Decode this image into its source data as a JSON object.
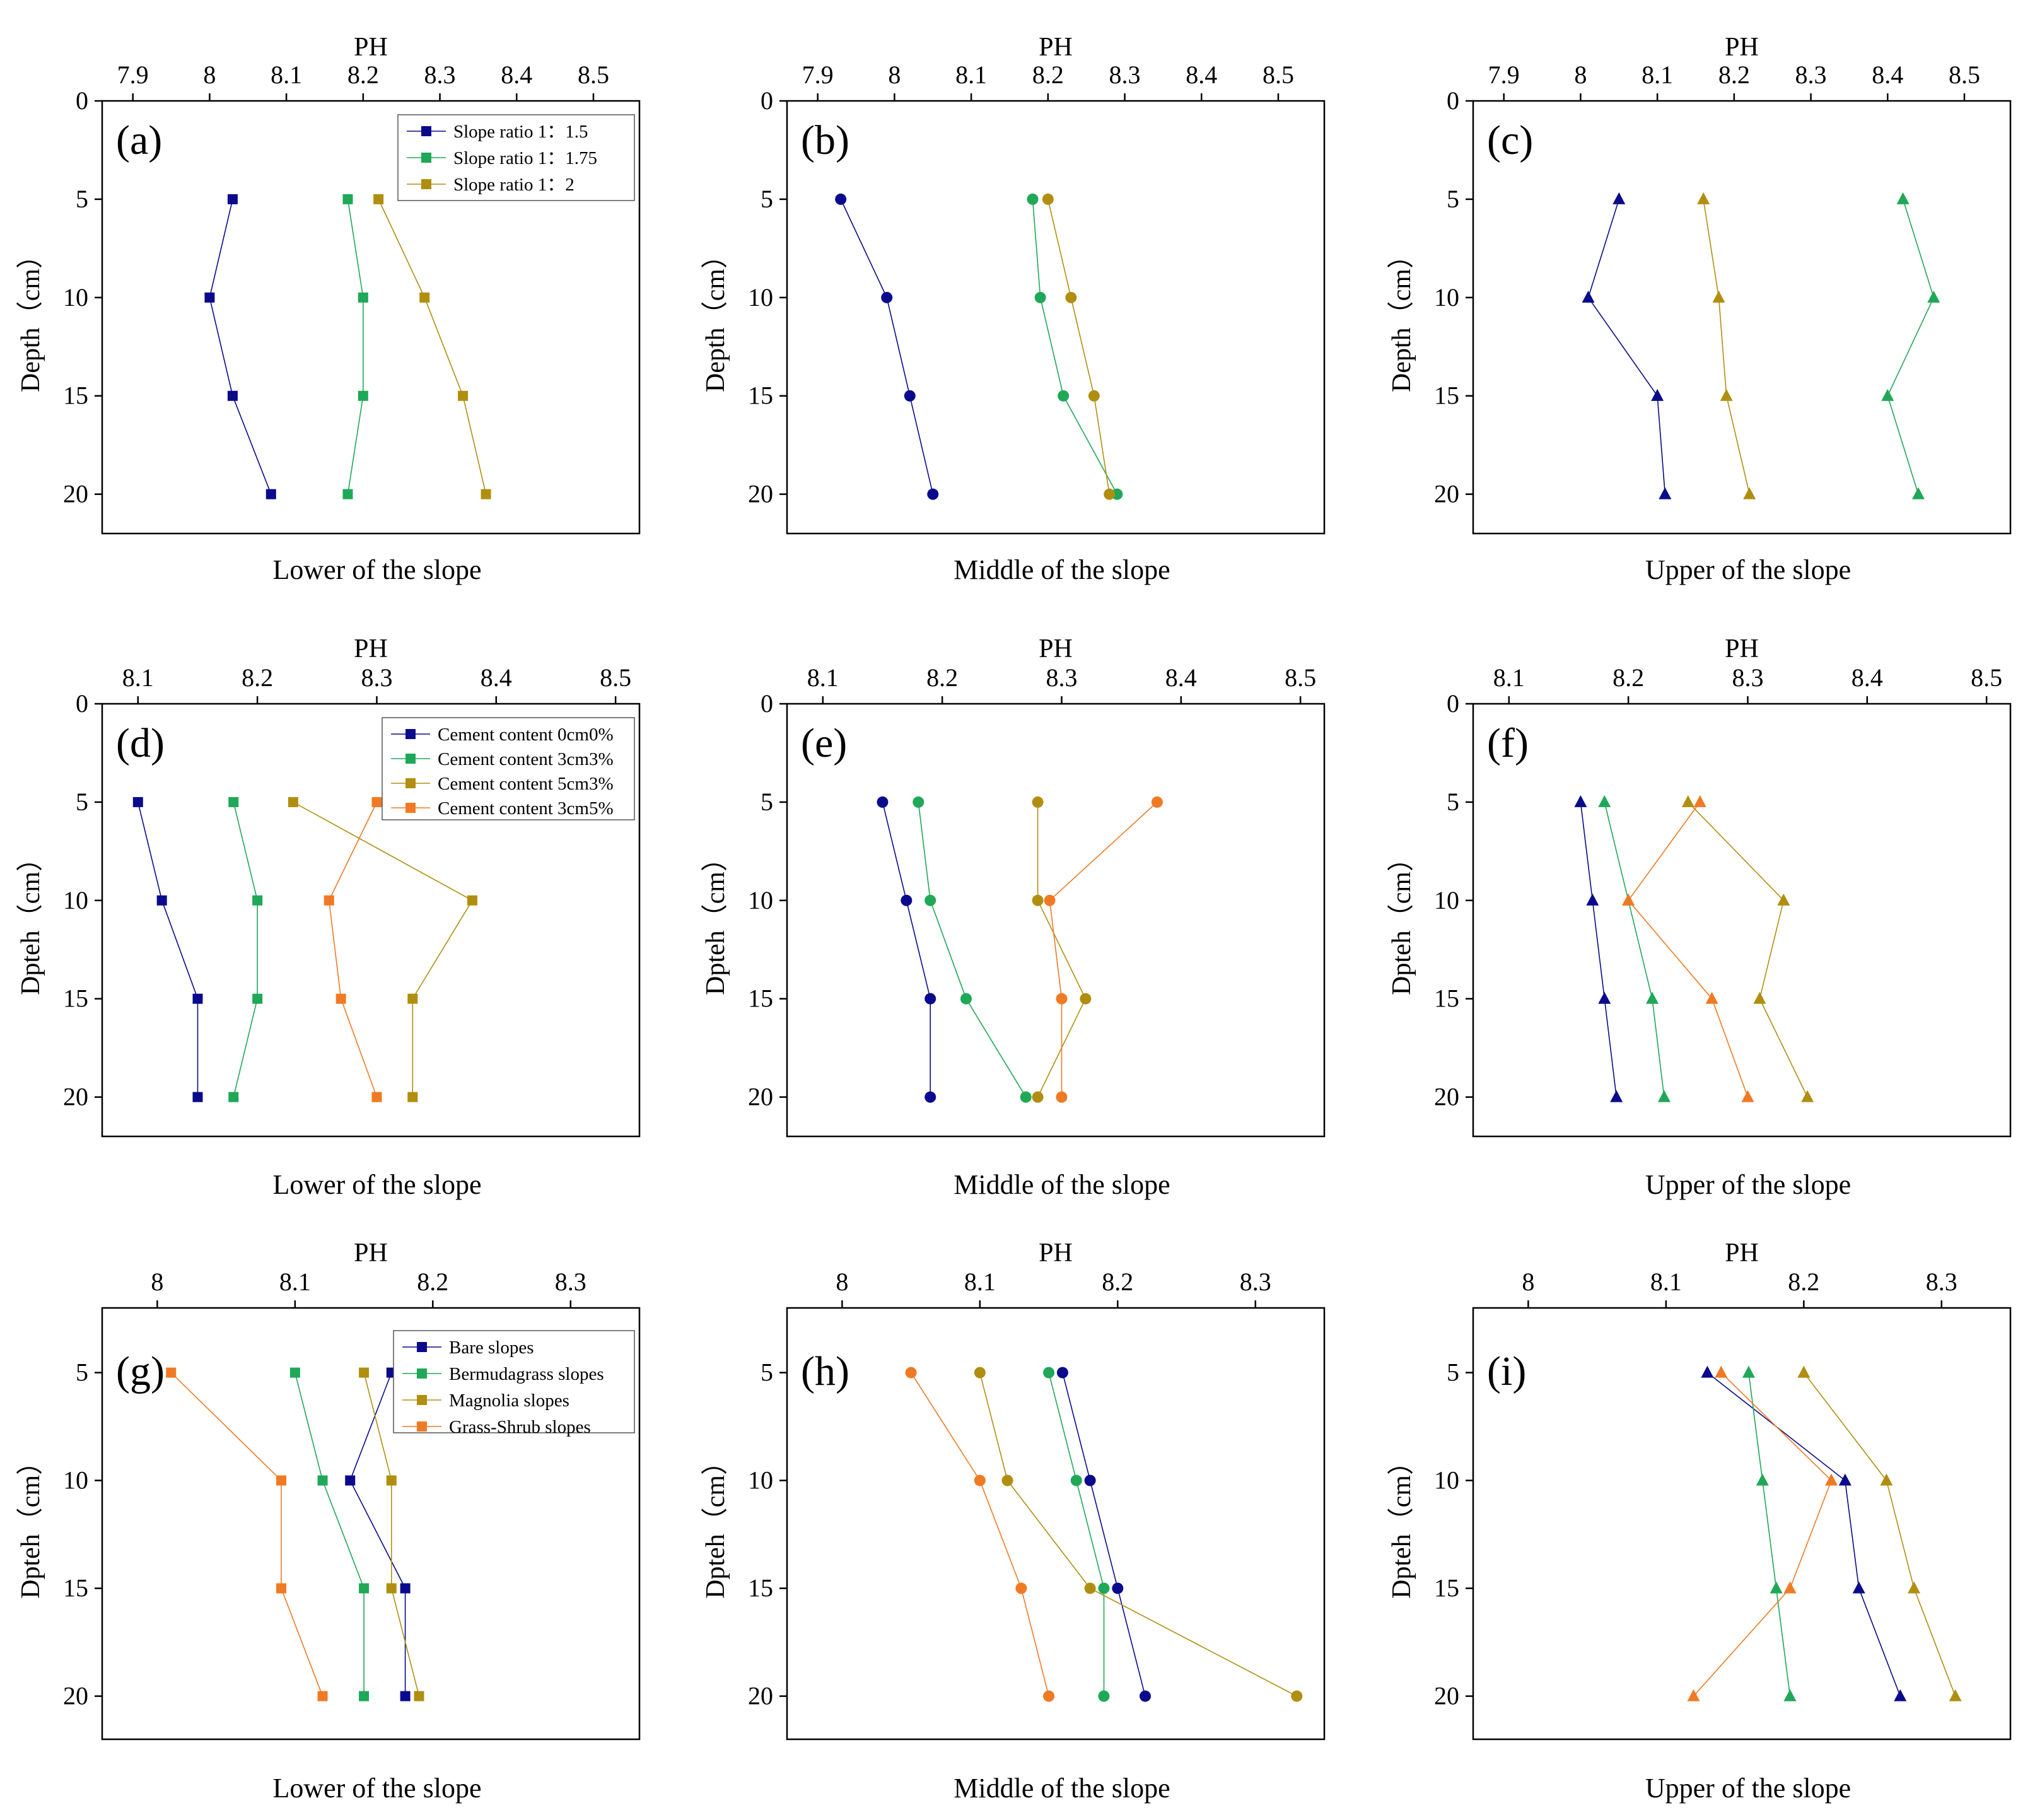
{
  "colors": {
    "navy": "#0a0a8c",
    "green": "#1fa857",
    "olive": "#b08f10",
    "orange": "#f07a24",
    "axis": "#000000"
  },
  "chart_data": [
    {
      "id": "a",
      "label": "(a)",
      "type": "line",
      "title": "PH",
      "xlabel": "Lower of the slope",
      "ylabel": "Depth（cm）",
      "xlim": [
        7.86,
        8.56
      ],
      "xticks": [
        7.9,
        8.0,
        8.1,
        8.2,
        8.3,
        8.4,
        8.5
      ],
      "ylim": [
        0,
        22
      ],
      "yticks": [
        0,
        5,
        10,
        15,
        20
      ],
      "marker": "square",
      "legend": "top-right",
      "series": [
        {
          "name": "Slope ratio 1：1.5",
          "color": "#0a0a8c",
          "x": [
            8.03,
            8.0,
            8.03,
            8.08
          ],
          "y": [
            5,
            10,
            15,
            20
          ]
        },
        {
          "name": "Slope ratio 1：1.75",
          "color": "#1fa857",
          "x": [
            8.18,
            8.2,
            8.2,
            8.18
          ],
          "y": [
            5,
            10,
            15,
            20
          ]
        },
        {
          "name": "Slope ratio 1：2",
          "color": "#b08f10",
          "x": [
            8.22,
            8.28,
            8.33,
            8.36
          ],
          "y": [
            5,
            10,
            15,
            20
          ]
        }
      ]
    },
    {
      "id": "b",
      "label": "(b)",
      "type": "line",
      "title": "PH",
      "xlabel": "Middle of the slope",
      "ylabel": "Depth（cm）",
      "xlim": [
        7.86,
        8.56
      ],
      "xticks": [
        7.9,
        8.0,
        8.1,
        8.2,
        8.3,
        8.4,
        8.5
      ],
      "ylim": [
        0,
        22
      ],
      "yticks": [
        0,
        5,
        10,
        15,
        20
      ],
      "marker": "circle",
      "legend": "",
      "series": [
        {
          "color": "#0a0a8c",
          "x": [
            7.93,
            7.99,
            8.02,
            8.05
          ],
          "y": [
            5,
            10,
            15,
            20
          ]
        },
        {
          "color": "#1fa857",
          "x": [
            8.18,
            8.19,
            8.22,
            8.29
          ],
          "y": [
            5,
            10,
            15,
            20
          ]
        },
        {
          "color": "#b08f10",
          "x": [
            8.2,
            8.23,
            8.26,
            8.28
          ],
          "y": [
            5,
            10,
            15,
            20
          ]
        }
      ]
    },
    {
      "id": "c",
      "label": "(c)",
      "type": "line",
      "title": "PH",
      "xlabel": "Upper of the slope",
      "ylabel": "Depth（cm）",
      "xlim": [
        7.86,
        8.56
      ],
      "xticks": [
        7.9,
        8.0,
        8.1,
        8.2,
        8.3,
        8.4,
        8.5
      ],
      "ylim": [
        0,
        22
      ],
      "yticks": [
        0,
        5,
        10,
        15,
        20
      ],
      "marker": "triangle",
      "legend": "",
      "series": [
        {
          "color": "#0a0a8c",
          "x": [
            8.05,
            8.01,
            8.1,
            8.11
          ],
          "y": [
            5,
            10,
            15,
            20
          ]
        },
        {
          "color": "#1fa857",
          "x": [
            8.42,
            8.46,
            8.4,
            8.44
          ],
          "y": [
            5,
            10,
            15,
            20
          ]
        },
        {
          "color": "#b08f10",
          "x": [
            8.16,
            8.18,
            8.19,
            8.22
          ],
          "y": [
            5,
            10,
            15,
            20
          ]
        }
      ]
    },
    {
      "id": "d",
      "label": "(d)",
      "type": "line",
      "title": "PH",
      "xlabel": "Lower of the slope",
      "ylabel": "Dpteh（cm）",
      "xlim": [
        8.07,
        8.52
      ],
      "xticks": [
        8.1,
        8.2,
        8.3,
        8.4,
        8.5
      ],
      "ylim": [
        0,
        22
      ],
      "yticks": [
        0,
        5,
        10,
        15,
        20
      ],
      "marker": "square",
      "legend": "top-right",
      "series": [
        {
          "name": "Cement content 0cm0%",
          "color": "#0a0a8c",
          "x": [
            8.1,
            8.12,
            8.15,
            8.15
          ],
          "y": [
            5,
            10,
            15,
            20
          ]
        },
        {
          "name": "Cement content 3cm3%",
          "color": "#1fa857",
          "x": [
            8.18,
            8.2,
            8.2,
            8.18
          ],
          "y": [
            5,
            10,
            15,
            20
          ]
        },
        {
          "name": "Cement content 5cm3%",
          "color": "#b08f10",
          "x": [
            8.23,
            8.38,
            8.33,
            8.33
          ],
          "y": [
            5,
            10,
            15,
            20
          ]
        },
        {
          "name": "Cement content 3cm5%",
          "color": "#f07a24",
          "x": [
            8.3,
            8.26,
            8.27,
            8.3
          ],
          "y": [
            5,
            10,
            15,
            20
          ]
        }
      ]
    },
    {
      "id": "e",
      "label": "(e)",
      "type": "line",
      "title": "PH",
      "xlabel": "Middle of the slope",
      "ylabel": "Dpteh（cm）",
      "xlim": [
        8.07,
        8.52
      ],
      "xticks": [
        8.1,
        8.2,
        8.3,
        8.4,
        8.5
      ],
      "ylim": [
        0,
        22
      ],
      "yticks": [
        0,
        5,
        10,
        15,
        20
      ],
      "marker": "circle",
      "legend": "",
      "series": [
        {
          "color": "#0a0a8c",
          "x": [
            8.15,
            8.17,
            8.19,
            8.19
          ],
          "y": [
            5,
            10,
            15,
            20
          ]
        },
        {
          "color": "#1fa857",
          "x": [
            8.18,
            8.19,
            8.22,
            8.27
          ],
          "y": [
            5,
            10,
            15,
            20
          ]
        },
        {
          "color": "#b08f10",
          "x": [
            8.28,
            8.28,
            8.32,
            8.28
          ],
          "y": [
            5,
            10,
            15,
            20
          ]
        },
        {
          "color": "#f07a24",
          "x": [
            8.38,
            8.29,
            8.3,
            8.3
          ],
          "y": [
            5,
            10,
            15,
            20
          ]
        }
      ]
    },
    {
      "id": "f",
      "label": "(f)",
      "type": "line",
      "title": "PH",
      "xlabel": "Upper of the slope",
      "ylabel": "Dpteh（cm）",
      "xlim": [
        8.07,
        8.52
      ],
      "xticks": [
        8.1,
        8.2,
        8.3,
        8.4,
        8.5
      ],
      "ylim": [
        0,
        22
      ],
      "yticks": [
        0,
        5,
        10,
        15,
        20
      ],
      "marker": "triangle",
      "legend": "",
      "series": [
        {
          "color": "#0a0a8c",
          "x": [
            8.16,
            8.17,
            8.18,
            8.19
          ],
          "y": [
            5,
            10,
            15,
            20
          ]
        },
        {
          "color": "#1fa857",
          "x": [
            8.18,
            8.2,
            8.22,
            8.23
          ],
          "y": [
            5,
            10,
            15,
            20
          ]
        },
        {
          "color": "#b08f10",
          "x": [
            8.25,
            8.33,
            8.31,
            8.35
          ],
          "y": [
            5,
            10,
            15,
            20
          ]
        },
        {
          "color": "#f07a24",
          "x": [
            8.26,
            8.2,
            8.27,
            8.3
          ],
          "y": [
            5,
            10,
            15,
            20
          ]
        }
      ]
    },
    {
      "id": "g",
      "label": "(g)",
      "type": "line",
      "title": "PH",
      "xlabel": "Lower of the slope",
      "ylabel": "Dpteh（cm）",
      "xlim": [
        7.96,
        8.35
      ],
      "xticks": [
        8.0,
        8.1,
        8.2,
        8.3
      ],
      "ylim": [
        2,
        22
      ],
      "yticks": [
        5,
        10,
        15,
        20
      ],
      "marker": "square",
      "legend": "top-right",
      "series": [
        {
          "name": "Bare slopes",
          "color": "#0a0a8c",
          "x": [
            8.17,
            8.14,
            8.18,
            8.18
          ],
          "y": [
            5,
            10,
            15,
            20
          ]
        },
        {
          "name": "Bermudagrass slopes",
          "color": "#1fa857",
          "x": [
            8.1,
            8.12,
            8.15,
            8.15
          ],
          "y": [
            5,
            10,
            15,
            20
          ]
        },
        {
          "name": "Magnolia slopes",
          "color": "#b08f10",
          "x": [
            8.15,
            8.17,
            8.17,
            8.19
          ],
          "y": [
            5,
            10,
            15,
            20
          ]
        },
        {
          "name": "Grass-Shrub slopes",
          "color": "#f07a24",
          "x": [
            8.01,
            8.09,
            8.09,
            8.12
          ],
          "y": [
            5,
            10,
            15,
            20
          ]
        }
      ]
    },
    {
      "id": "h",
      "label": "(h)",
      "type": "line",
      "title": "PH",
      "xlabel": "Middle of the slope",
      "ylabel": "Dpteh（cm）",
      "xlim": [
        7.96,
        8.35
      ],
      "xticks": [
        8.0,
        8.1,
        8.2,
        8.3
      ],
      "ylim": [
        2,
        22
      ],
      "yticks": [
        5,
        10,
        15,
        20
      ],
      "marker": "circle",
      "legend": "",
      "series": [
        {
          "color": "#0a0a8c",
          "x": [
            8.16,
            8.18,
            8.2,
            8.22
          ],
          "y": [
            5,
            10,
            15,
            20
          ]
        },
        {
          "color": "#1fa857",
          "x": [
            8.15,
            8.17,
            8.19,
            8.19
          ],
          "y": [
            5,
            10,
            15,
            20
          ]
        },
        {
          "color": "#b08f10",
          "x": [
            8.1,
            8.12,
            8.18,
            8.33
          ],
          "y": [
            5,
            10,
            15,
            20
          ]
        },
        {
          "color": "#f07a24",
          "x": [
            8.05,
            8.1,
            8.13,
            8.15
          ],
          "y": [
            5,
            10,
            15,
            20
          ]
        }
      ]
    },
    {
      "id": "i",
      "label": "(i)",
      "type": "line",
      "title": "PH",
      "xlabel": "Upper of the slope",
      "ylabel": "Dpteh（cm）",
      "xlim": [
        7.96,
        8.35
      ],
      "xticks": [
        8.0,
        8.1,
        8.2,
        8.3
      ],
      "ylim": [
        2,
        22
      ],
      "yticks": [
        5,
        10,
        15,
        20
      ],
      "marker": "triangle",
      "legend": "",
      "series": [
        {
          "color": "#0a0a8c",
          "x": [
            8.13,
            8.23,
            8.24,
            8.27
          ],
          "y": [
            5,
            10,
            15,
            20
          ]
        },
        {
          "color": "#1fa857",
          "x": [
            8.16,
            8.17,
            8.18,
            8.19
          ],
          "y": [
            5,
            10,
            15,
            20
          ]
        },
        {
          "color": "#b08f10",
          "x": [
            8.2,
            8.26,
            8.28,
            8.31
          ],
          "y": [
            5,
            10,
            15,
            20
          ]
        },
        {
          "color": "#f07a24",
          "x": [
            8.14,
            8.22,
            8.19,
            8.12
          ],
          "y": [
            5,
            10,
            15,
            20
          ]
        }
      ]
    }
  ]
}
